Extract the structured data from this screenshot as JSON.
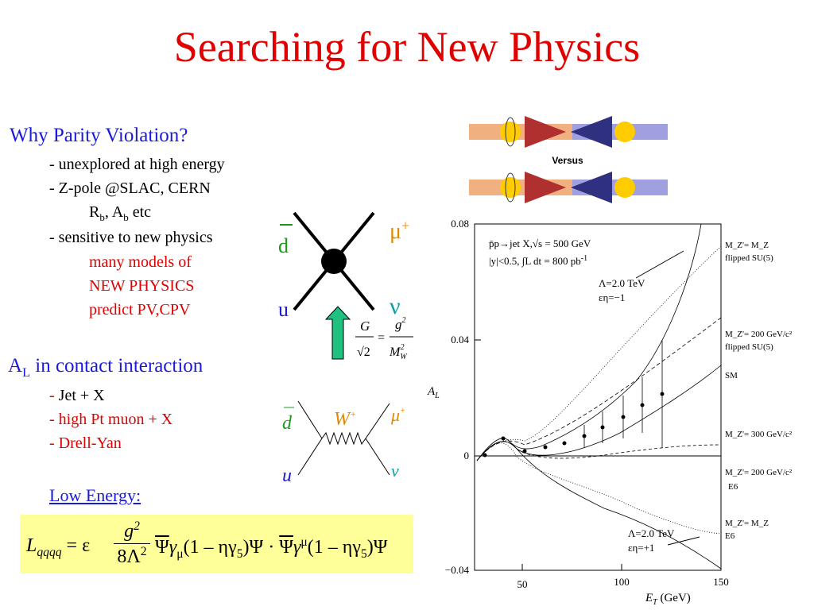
{
  "title": "Searching for New Physics",
  "pv": {
    "heading": "Why Parity Violation?",
    "items": [
      "- unexplored at high energy",
      "- Z-pole  @SLAC, CERN"
    ],
    "sub": {
      "r": "R",
      "b1": "b",
      "a": ", A",
      "b2": "b",
      "etc": " etc"
    },
    "item3": "- sensitive to new physics",
    "red": [
      "many models of",
      "NEW PHYSICS",
      "predict PV,CPV"
    ]
  },
  "contact": {
    "a": "A",
    "l": "L",
    "rest": " in contact interaction",
    "jet_dash": "-",
    "jet": " Jet + X",
    "muon": "- high Pt muon + X",
    "dy": "- Drell-Yan",
    "low": "Low Energy:"
  },
  "formula": {
    "l": "L",
    "qqqq": "qqqq",
    "eq": "= ε",
    "g": "g",
    "sq1": "2",
    "den": "8Λ",
    "sq2": "2",
    "psi1": "Ψ",
    "gam1": "γ",
    "mu1": "μ",
    "p1": "(1 – ηγ",
    "f1": "5",
    "p1b": ")Ψ · ",
    "psi2": "Ψ",
    "gam2": "γ",
    "mu2": "μ",
    "p2": "(1 – ηγ",
    "f2": "5",
    "p2b": ")Ψ"
  },
  "diagram1": {
    "d": "d",
    "u": "u",
    "mu": "μ",
    "plus": "+",
    "nu": "ν",
    "G": "G",
    "root2": "√2",
    "eq": "=",
    "g": "g",
    "g2": "2",
    "M": "M",
    "W": "W",
    "M2": "2"
  },
  "versus": "Versus",
  "diagram2": {
    "d": "d",
    "u": "u",
    "W": "W",
    "wplus": "+",
    "mu": "μ",
    "plus": "+",
    "nu": "ν"
  },
  "plot": {
    "yticks": [
      "0.08",
      "0.04",
      "0",
      "−0.04"
    ],
    "xticks": [
      "50",
      "100",
      "150"
    ],
    "ylabel": "A",
    "ylabel_sub": "L",
    "xlabel": "E",
    "xlabel_sub": "T",
    "xunit": " (GeV)",
    "info1": "p̄p→jet X,√s = 500 GeV",
    "info2": "|y|<0.5, ∫L dt = 800 pb",
    "info2_sup": "-1",
    "ann1": [
      "Λ=2.0 TeV",
      "εη=−1"
    ],
    "ann2": [
      "Λ=2.0 TeV",
      "εη=+1"
    ],
    "right": [
      "M_Z'= M_Z",
      "flipped SU(5)",
      "M_Z'= 200 GeV/c²",
      "flipped SU(5)",
      "SM",
      "M_Z'= 300 GeV/c²",
      "M_Z'= 200 GeV/c²",
      "E6",
      "M_Z'= M_Z",
      "E6"
    ]
  }
}
